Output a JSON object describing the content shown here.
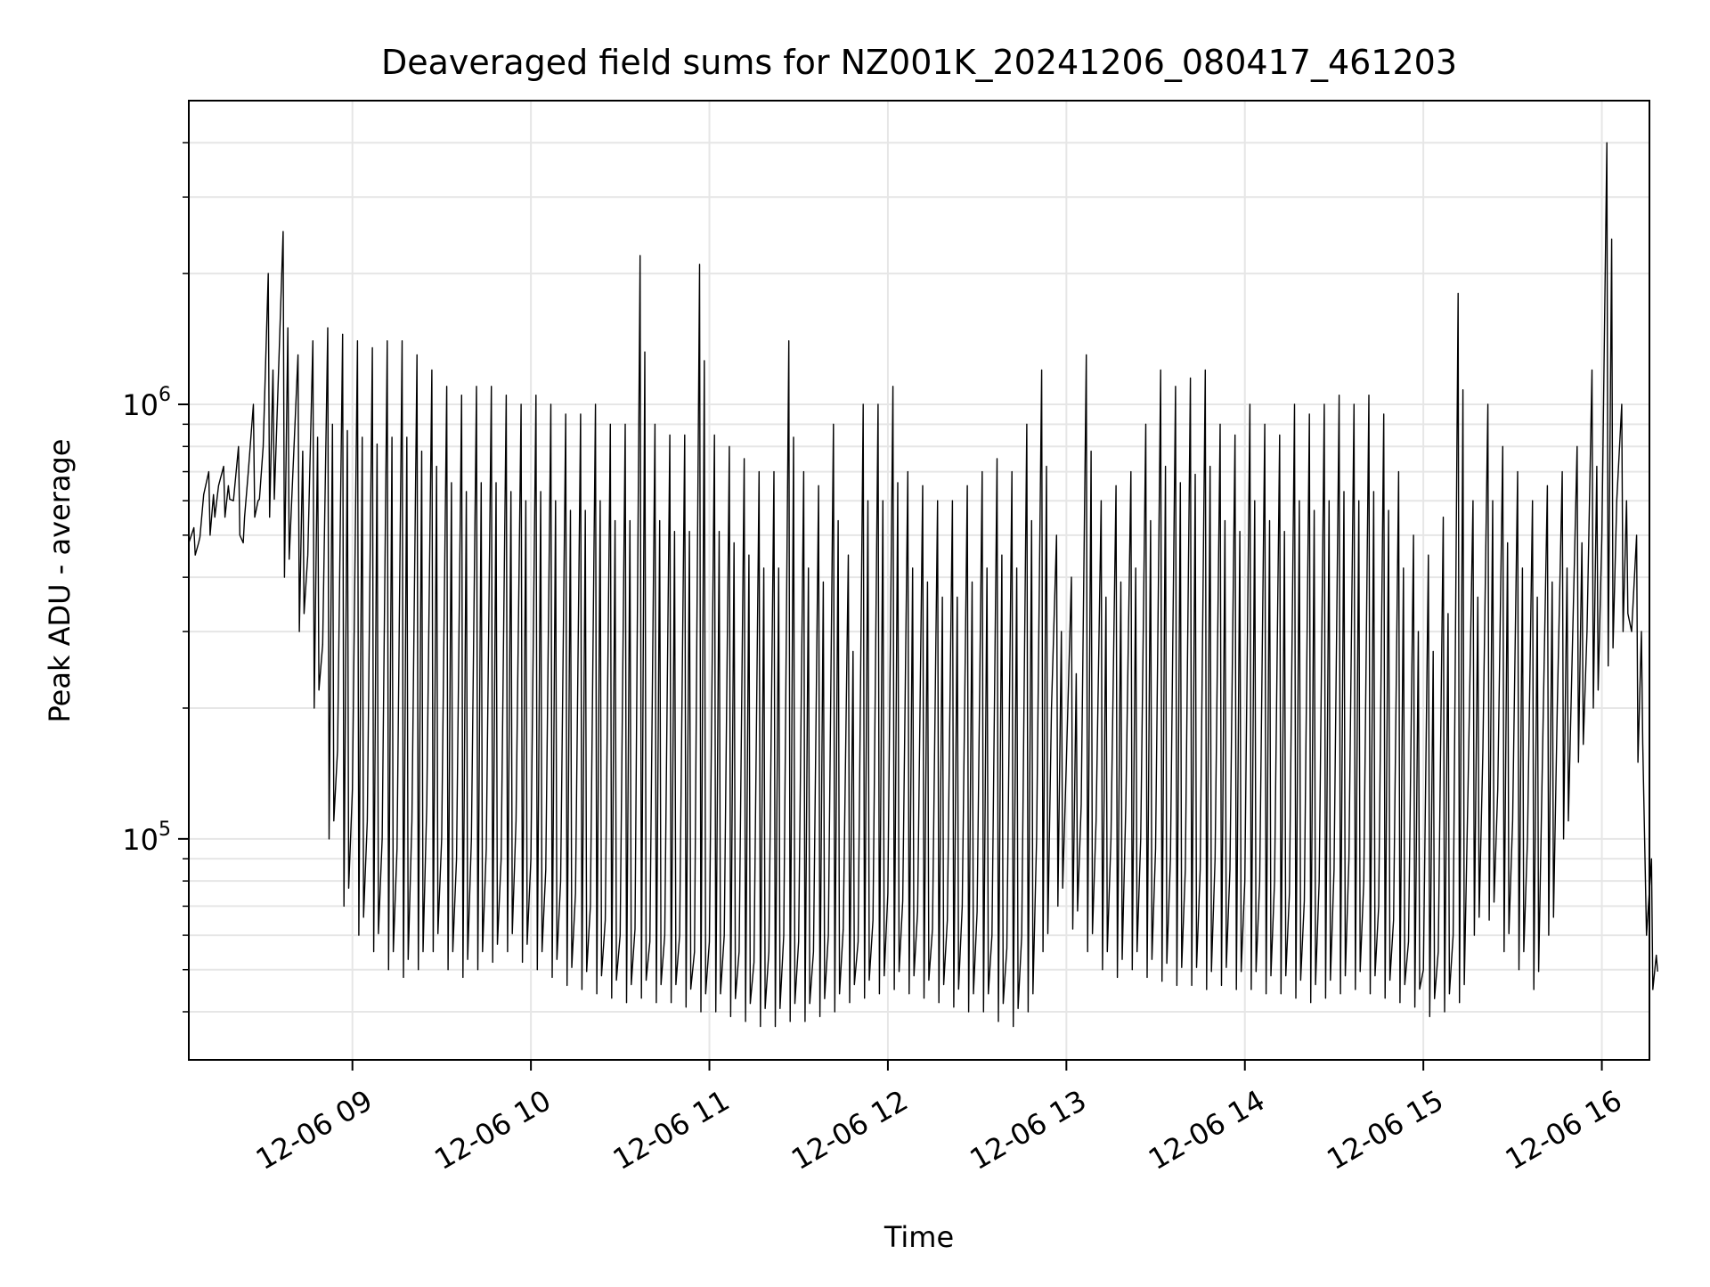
{
  "chart_data": {
    "type": "line",
    "title": "Deaveraged field sums for NZ001K_20241206_080417_461203",
    "xlabel": "Time",
    "ylabel": "Peak ADU - average",
    "yscale": "log",
    "xlim": [
      "2024-12-06 08:05",
      "2024-12-06 16:16"
    ],
    "ylim": [
      31000,
      5000000
    ],
    "grid": true,
    "line_color": "#000000",
    "grid_color": "#e6e6e6",
    "x_ticks": [
      {
        "label": "12-06 09",
        "value": "2024-12-06 09:00"
      },
      {
        "label": "12-06 10",
        "value": "2024-12-06 10:00"
      },
      {
        "label": "12-06 11",
        "value": "2024-12-06 11:00"
      },
      {
        "label": "12-06 12",
        "value": "2024-12-06 12:00"
      },
      {
        "label": "12-06 13",
        "value": "2024-12-06 13:00"
      },
      {
        "label": "12-06 14",
        "value": "2024-12-06 14:00"
      },
      {
        "label": "12-06 15",
        "value": "2024-12-06 15:00"
      },
      {
        "label": "12-06 16",
        "value": "2024-12-06 16:00"
      }
    ],
    "y_ticks": [
      {
        "base": "10",
        "exp": "5",
        "value": 100000
      },
      {
        "base": "10",
        "exp": "6",
        "value": 1000000
      }
    ],
    "y_minor_ticks": [
      40000,
      50000,
      60000,
      70000,
      80000,
      90000,
      200000,
      300000,
      400000,
      500000,
      600000,
      700000,
      800000,
      900000,
      2000000,
      3000000,
      4000000
    ],
    "series": [
      {
        "x": [
          "2024-12-06 08:05",
          "2024-12-06 08:10",
          "2024-12-06 08:15",
          "2024-12-06 08:20",
          "2024-12-06 08:25",
          "2024-12-06 08:30",
          "2024-12-06 08:35",
          "2024-12-06 08:40",
          "2024-12-06 08:45",
          "2024-12-06 08:50",
          "2024-12-06 08:55",
          "2024-12-06 09:00",
          "2024-12-06 09:05",
          "2024-12-06 09:10",
          "2024-12-06 09:15",
          "2024-12-06 09:20",
          "2024-12-06 09:25",
          "2024-12-06 09:30",
          "2024-12-06 09:35",
          "2024-12-06 09:40",
          "2024-12-06 09:45",
          "2024-12-06 09:50",
          "2024-12-06 09:55",
          "2024-12-06 10:00",
          "2024-12-06 10:05",
          "2024-12-06 10:10",
          "2024-12-06 10:15",
          "2024-12-06 10:20",
          "2024-12-06 10:25",
          "2024-12-06 10:30",
          "2024-12-06 10:35",
          "2024-12-06 10:40",
          "2024-12-06 10:45",
          "2024-12-06 10:50",
          "2024-12-06 10:55",
          "2024-12-06 11:00",
          "2024-12-06 11:05",
          "2024-12-06 11:10",
          "2024-12-06 11:15",
          "2024-12-06 11:20",
          "2024-12-06 11:25",
          "2024-12-06 11:30",
          "2024-12-06 11:35",
          "2024-12-06 11:40",
          "2024-12-06 11:45",
          "2024-12-06 11:50",
          "2024-12-06 11:55",
          "2024-12-06 12:00",
          "2024-12-06 12:05",
          "2024-12-06 12:10",
          "2024-12-06 12:15",
          "2024-12-06 12:20",
          "2024-12-06 12:25",
          "2024-12-06 12:30",
          "2024-12-06 12:35",
          "2024-12-06 12:40",
          "2024-12-06 12:45",
          "2024-12-06 12:50",
          "2024-12-06 12:55",
          "2024-12-06 13:00",
          "2024-12-06 13:05",
          "2024-12-06 13:10",
          "2024-12-06 13:15",
          "2024-12-06 13:20",
          "2024-12-06 13:25",
          "2024-12-06 13:30",
          "2024-12-06 13:35",
          "2024-12-06 13:40",
          "2024-12-06 13:45",
          "2024-12-06 13:50",
          "2024-12-06 13:55",
          "2024-12-06 14:00",
          "2024-12-06 14:05",
          "2024-12-06 14:10",
          "2024-12-06 14:15",
          "2024-12-06 14:20",
          "2024-12-06 14:25",
          "2024-12-06 14:30",
          "2024-12-06 14:35",
          "2024-12-06 14:40",
          "2024-12-06 14:45",
          "2024-12-06 14:50",
          "2024-12-06 14:55",
          "2024-12-06 15:00",
          "2024-12-06 15:05",
          "2024-12-06 15:10",
          "2024-12-06 15:15",
          "2024-12-06 15:20",
          "2024-12-06 15:25",
          "2024-12-06 15:30",
          "2024-12-06 15:35",
          "2024-12-06 15:40",
          "2024-12-06 15:45",
          "2024-12-06 15:50",
          "2024-12-06 15:55",
          "2024-12-06 16:00",
          "2024-12-06 16:05",
          "2024-12-06 16:10",
          "2024-12-06 16:15"
        ],
        "y": [
          480000,
          620000,
          650000,
          600000,
          700000,
          800000,
          1100000,
          700000,
          450000,
          280000,
          160000,
          130000,
          110000,
          100000,
          95000,
          110000,
          120000,
          100000,
          90000,
          100000,
          95000,
          90000,
          110000,
          90000,
          85000,
          80000,
          75000,
          70000,
          65000,
          60000,
          62000,
          58000,
          60000,
          60000,
          55000,
          58000,
          60000,
          55000,
          52000,
          55000,
          60000,
          58000,
          55000,
          60000,
          62000,
          58000,
          65000,
          75000,
          72000,
          68000,
          62000,
          65000,
          70000,
          68000,
          60000,
          56000,
          60000,
          100000,
          200000,
          150000,
          120000,
          110000,
          100000,
          120000,
          100000,
          95000,
          90000,
          85000,
          85000,
          90000,
          85000,
          80000,
          80000,
          80000,
          75000,
          72000,
          80000,
          85000,
          90000,
          80000,
          70000,
          65000,
          58000,
          50000,
          55000,
          60000,
          130000,
          160000,
          130000,
          110000,
          100000,
          150000,
          200000,
          260000,
          300000,
          500000,
          600000,
          300000,
          60000
        ],
        "y_high": [
          520000,
          700000,
          720000,
          800000,
          1000000,
          2000000,
          2500000,
          1300000,
          1400000,
          1500000,
          1450000,
          1400000,
          1350000,
          1400000,
          1400000,
          1300000,
          1200000,
          1100000,
          1050000,
          1100000,
          1100000,
          1050000,
          1000000,
          1050000,
          1000000,
          950000,
          950000,
          1000000,
          900000,
          900000,
          2200000,
          900000,
          850000,
          850000,
          2100000,
          850000,
          800000,
          750000,
          700000,
          700000,
          1400000,
          700000,
          650000,
          900000,
          450000,
          1000000,
          1000000,
          1100000,
          700000,
          650000,
          600000,
          600000,
          650000,
          700000,
          750000,
          700000,
          900000,
          1200000,
          500000,
          400000,
          1300000,
          600000,
          650000,
          700000,
          900000,
          1200000,
          1100000,
          1150000,
          1200000,
          900000,
          850000,
          1000000,
          900000,
          850000,
          1000000,
          950000,
          1000000,
          1050000,
          1000000,
          1050000,
          950000,
          700000,
          500000,
          450000,
          550000,
          1800000,
          600000,
          1000000,
          800000,
          700000,
          600000,
          650000,
          700000,
          800000,
          1200000,
          4000000,
          1000000,
          500000,
          90000
        ],
        "y_low": [
          450000,
          500000,
          550000,
          500000,
          550000,
          550000,
          400000,
          300000,
          200000,
          100000,
          70000,
          60000,
          55000,
          50000,
          48000,
          50000,
          55000,
          50000,
          48000,
          50000,
          52000,
          55000,
          52000,
          50000,
          48000,
          46000,
          45000,
          44000,
          43000,
          42000,
          43000,
          42000,
          42000,
          41000,
          40000,
          40000,
          39000,
          38000,
          37000,
          37000,
          38000,
          38000,
          39000,
          40000,
          42000,
          43000,
          44000,
          45000,
          44000,
          43000,
          42000,
          41000,
          40000,
          40000,
          38000,
          37000,
          40000,
          55000,
          70000,
          62000,
          55000,
          50000,
          48000,
          50000,
          48000,
          47000,
          46000,
          46000,
          45000,
          46000,
          45000,
          45000,
          44000,
          44000,
          43000,
          42000,
          43000,
          44000,
          45000,
          44000,
          43000,
          42000,
          41000,
          39000,
          40000,
          42000,
          60000,
          65000,
          55000,
          50000,
          45000,
          60000,
          100000,
          150000,
          200000,
          250000,
          300000,
          150000,
          45000
        ]
      }
    ]
  }
}
